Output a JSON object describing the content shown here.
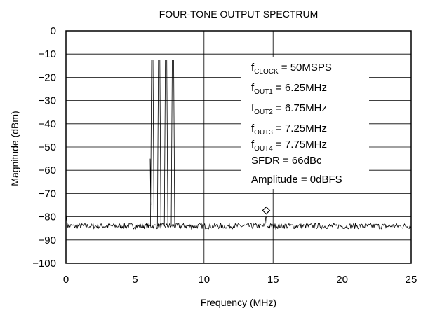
{
  "chart_data": {
    "type": "line",
    "title": "FOUR-TONE OUTPUT SPECTRUM",
    "xlabel": "Frequency (MHz)",
    "ylabel": "Magnitude (dBm)",
    "xlim": [
      0,
      25
    ],
    "ylim": [
      -100,
      0
    ],
    "xticks": [
      "0",
      "5",
      "10",
      "15",
      "20",
      "25"
    ],
    "yticks": [
      "0",
      "−10",
      "−20",
      "−30",
      "−40",
      "−50",
      "−60",
      "−70",
      "−80",
      "−90",
      "−100"
    ],
    "grid": true,
    "noise_floor_dbm": -84,
    "tones": [
      {
        "freq_mhz": 6.25,
        "magnitude_dbm": -12.5
      },
      {
        "freq_mhz": 6.75,
        "magnitude_dbm": -12.5
      },
      {
        "freq_mhz": 7.25,
        "magnitude_dbm": -12.5
      },
      {
        "freq_mhz": 7.75,
        "magnitude_dbm": -12.5
      }
    ],
    "spur": {
      "freq_mhz": 14.5,
      "magnitude_dbm": -80
    },
    "marker": {
      "shape": "diamond",
      "freq_mhz": 14.5,
      "magnitude_dbm": -78.5
    },
    "annotations": {
      "clock": {
        "sym": "f",
        "sub": "CLOCK",
        "text": " = 50MSPS"
      },
      "out1": {
        "sym": "f",
        "sub": "OUT1",
        "text": " = 6.25MHz"
      },
      "out2": {
        "sym": "f",
        "sub": "OUT2",
        "text": " = 6.75MHz"
      },
      "out3": {
        "sym": "f",
        "sub": "OUT3",
        "text": " = 7.25MHz"
      },
      "out4": {
        "sym": "f",
        "sub": "OUT4",
        "text": " = 7.75MHz"
      },
      "sfdr": "SFDR = 66dBc",
      "amplitude": "Amplitude = 0dBFS"
    },
    "colors": {
      "trace": "#000000",
      "grid": "#000000",
      "background": "#ffffff"
    }
  }
}
